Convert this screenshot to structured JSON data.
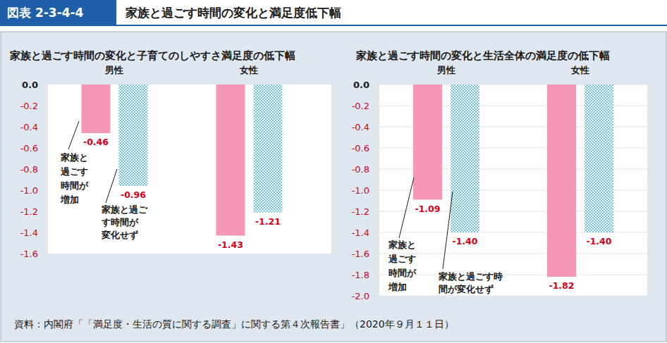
{
  "header": {
    "label": "図表 2-3-4-4",
    "title": "家族と過ごす時間の変化と満足度低下幅"
  },
  "chart_data": [
    {
      "type": "bar",
      "title": "家族と過ごす時間の変化と子育てのしやすさ満足度の低下幅",
      "categories": [
        "男性",
        "女性"
      ],
      "series": [
        {
          "name": "家族と\n過ごす\n時間が\n増加",
          "color": "#f598b6",
          "values": [
            -0.46,
            -1.43
          ]
        },
        {
          "name": "家族と過ご\nす時間が\n変化せず",
          "color": "#6cc6dd",
          "values": [
            -0.96,
            -1.21
          ]
        }
      ],
      "ylim": [
        -1.6,
        0
      ],
      "yticks": [
        {
          "value": 0,
          "label": "0.0"
        },
        {
          "value": -0.2,
          "label": "-0.2"
        },
        {
          "value": -0.4,
          "label": "-0.4"
        },
        {
          "value": -0.6,
          "label": "-0.6"
        },
        {
          "value": -0.8,
          "label": "-0.8"
        },
        {
          "value": -1,
          "label": "-1.0"
        },
        {
          "value": -1.2,
          "label": "-1.2"
        },
        {
          "value": -1.4,
          "label": "-1.4"
        },
        {
          "value": -1.6,
          "label": "-1.6"
        }
      ],
      "grid": false,
      "data_labels": true
    },
    {
      "type": "bar",
      "title": "家族と過ごす時間の変化と生活全体の満足度の低下幅",
      "categories": [
        "男性",
        "女性"
      ],
      "series": [
        {
          "name": "家族と\n過ごす\n時間が\n増加",
          "color": "#f598b6",
          "values": [
            -1.09,
            -1.82
          ]
        },
        {
          "name": "家族と過ごす時\n間が変化せず",
          "color": "#6cc6dd",
          "values": [
            -1.4,
            -1.4
          ],
          "value_labels": [
            "-1.40",
            "-1.40"
          ]
        }
      ],
      "ylim": [
        -2,
        0
      ],
      "yticks": [
        {
          "value": 0,
          "label": "0.0"
        },
        {
          "value": -0.2,
          "label": "-0.2"
        },
        {
          "value": -0.4,
          "label": "-0.4"
        },
        {
          "value": -0.6,
          "label": "-0.6"
        },
        {
          "value": -0.8,
          "label": "-0.8"
        },
        {
          "value": -1,
          "label": "-1.0"
        },
        {
          "value": -1.2,
          "label": "-1.2"
        },
        {
          "value": -1.4,
          "label": "-1.4"
        },
        {
          "value": -1.6,
          "label": "-1.6"
        },
        {
          "value": -1.8,
          "label": "-1.8"
        },
        {
          "value": -2,
          "label": "-2.0"
        }
      ],
      "grid": true,
      "data_labels": true
    }
  ],
  "source": "資料：内閣府「「満足度・生活の質に関する調査」に関する第４次報告書」（2020年９月１１日）"
}
